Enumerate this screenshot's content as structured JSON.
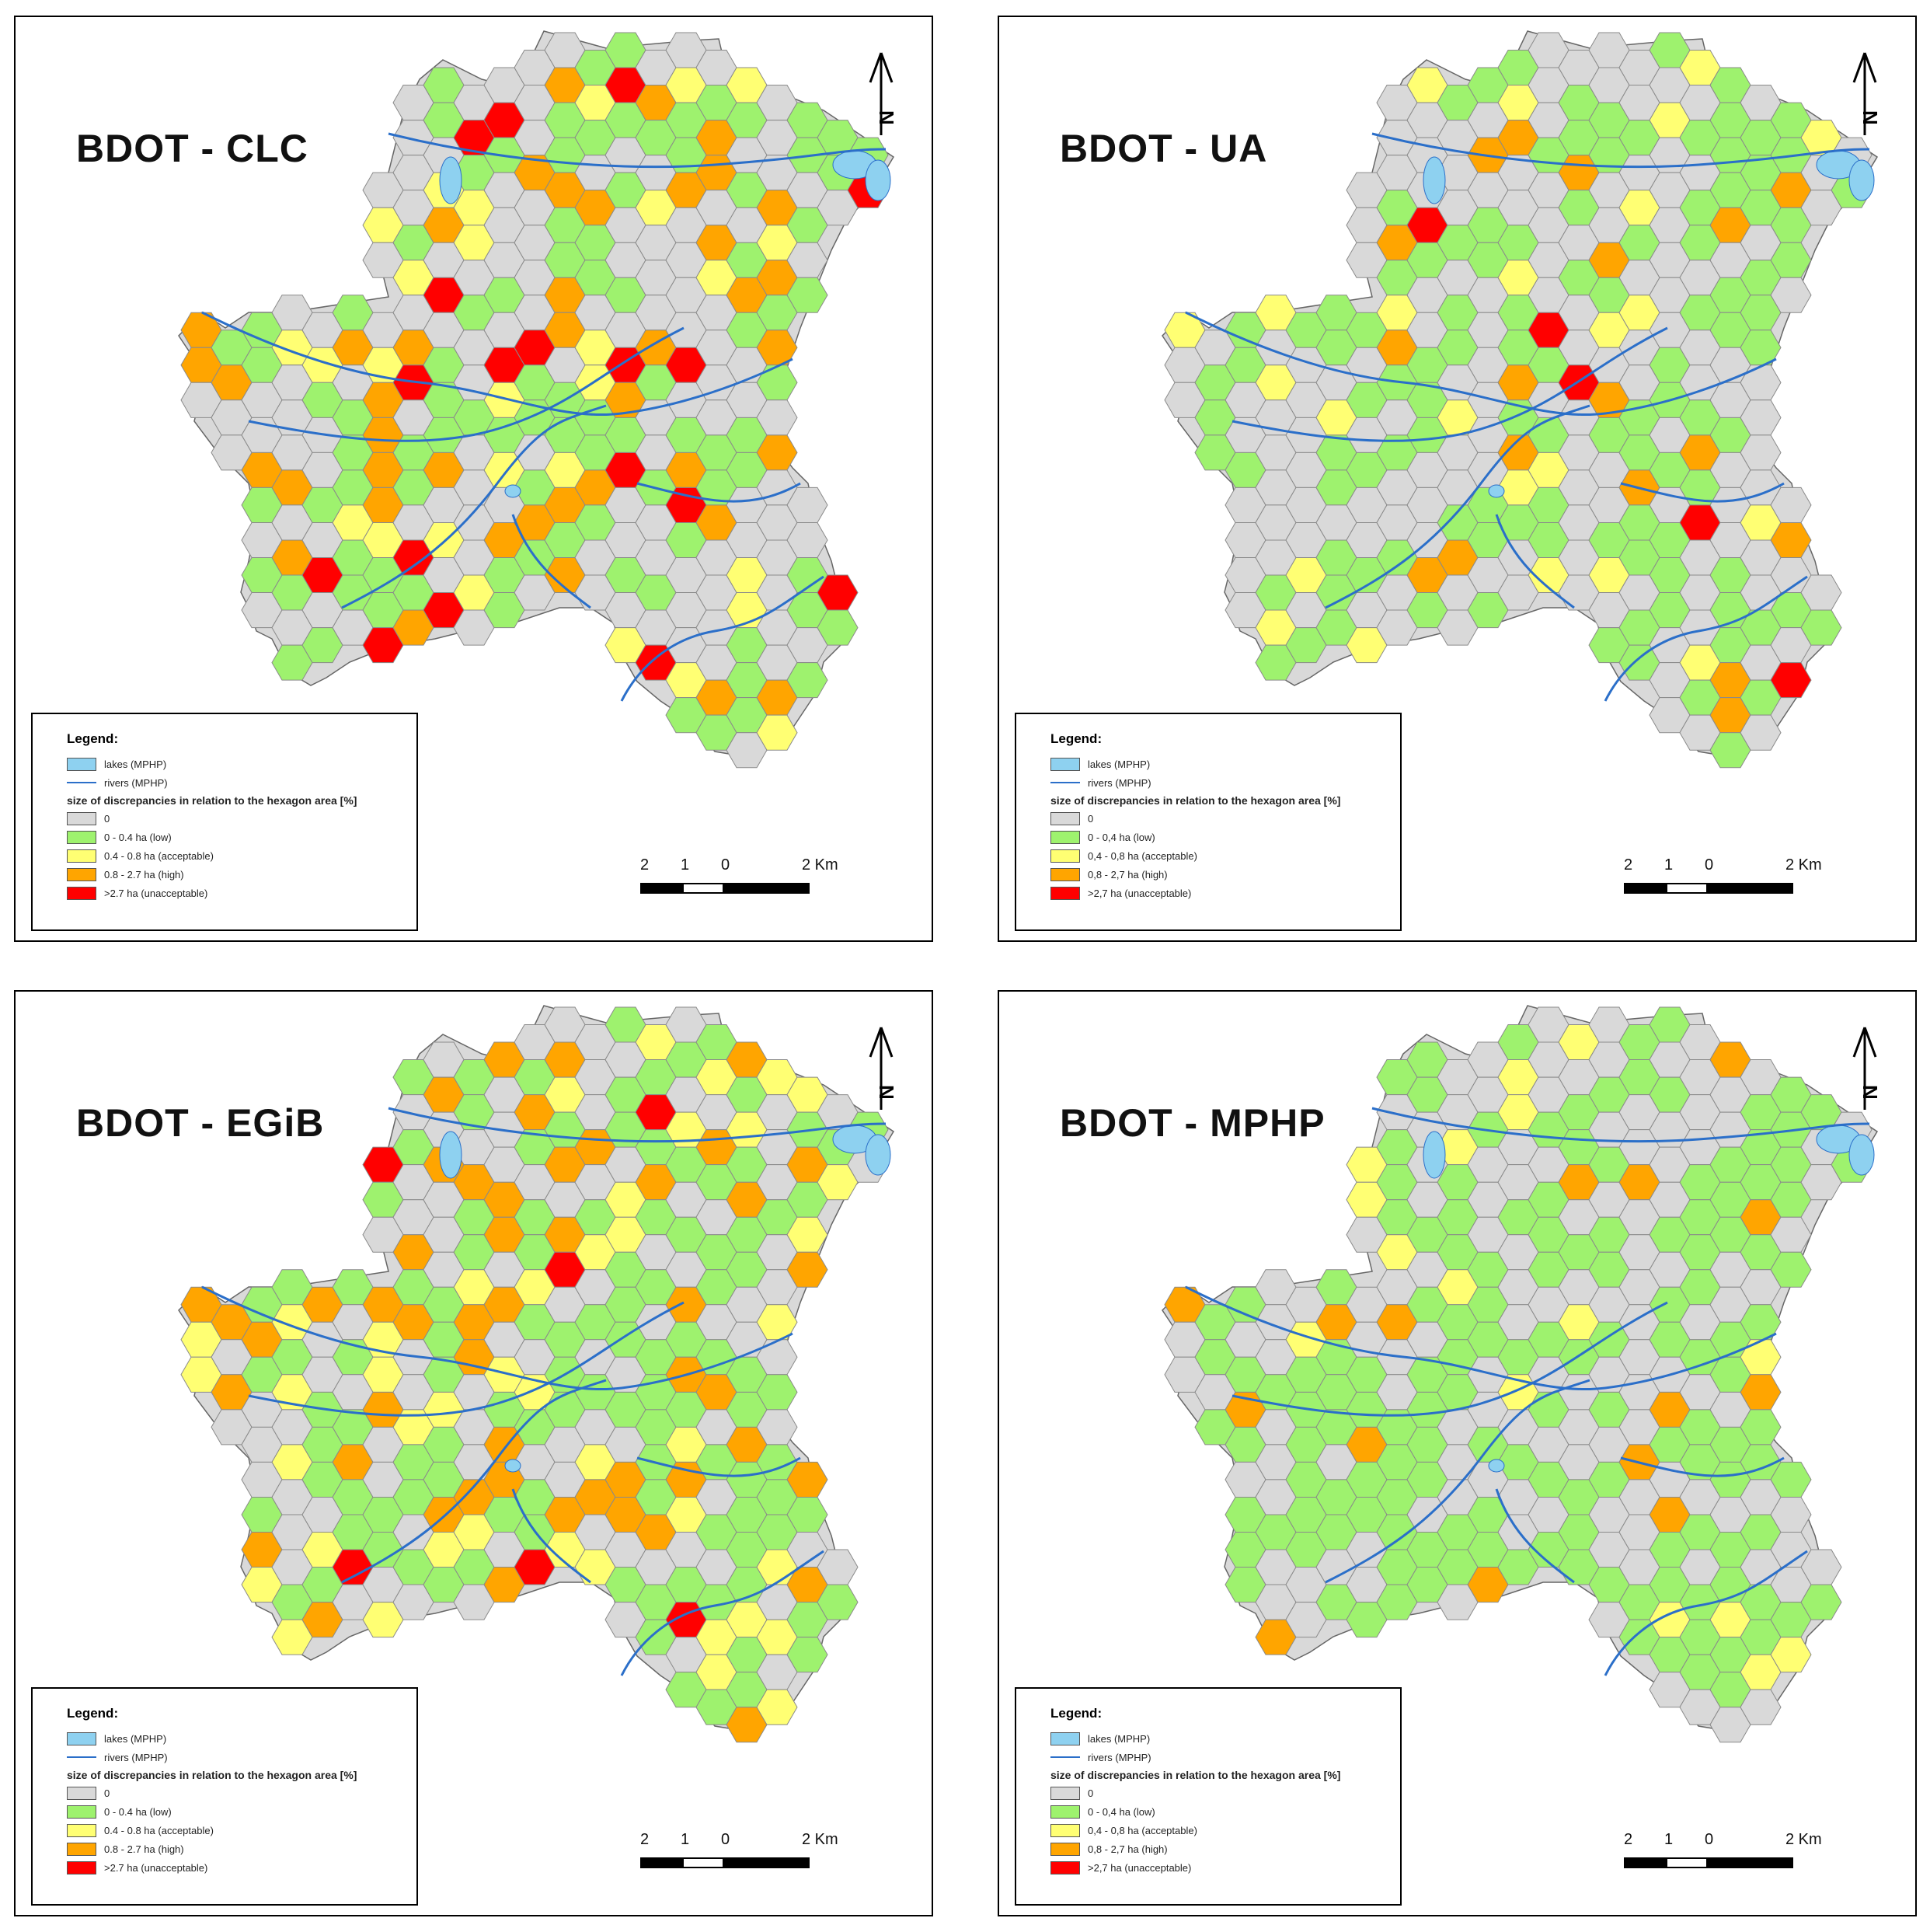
{
  "panels": [
    {
      "title": "BDOT - CLC",
      "mix": [
        38,
        30,
        12,
        14,
        6
      ]
    },
    {
      "title": "BDOT - UA",
      "mix": [
        45,
        38,
        9,
        7,
        1
      ]
    },
    {
      "title": "BDOT - EGiB",
      "mix": [
        36,
        32,
        14,
        15,
        3
      ]
    },
    {
      "title": "BDOT - MPHP",
      "mix": [
        42,
        45,
        7,
        6,
        0
      ]
    }
  ],
  "legend": {
    "title": "Legend:",
    "lakes": "lakes (MPHP)",
    "rivers": "rivers (MPHP)",
    "subtitle": "size of discrepancies in relation to the hexagon area [%]",
    "classes": [
      "0",
      "0 - 0.4 ha (low)",
      "0.4 - 0.8 ha (acceptable)",
      "0.8 - 2.7 ha (high)",
      ">2.7 ha (unacceptable)"
    ],
    "classes_ua": [
      "0",
      "0 - 0,4 ha (low)",
      "0,4 - 0,8 ha (acceptable)",
      "0,8 - 2,7 ha (high)",
      ">2,7 ha (unacceptable)"
    ],
    "class_colors": [
      "#d9d9d9",
      "#9ef26e",
      "#ffff73",
      "#ffa500",
      "#ff0000"
    ],
    "lake_color": "#8ed1f0",
    "river_color": "#2b6fc9"
  },
  "scale": {
    "labels": [
      "2",
      "1",
      "0",
      "2 Km"
    ]
  },
  "north_label": "N"
}
